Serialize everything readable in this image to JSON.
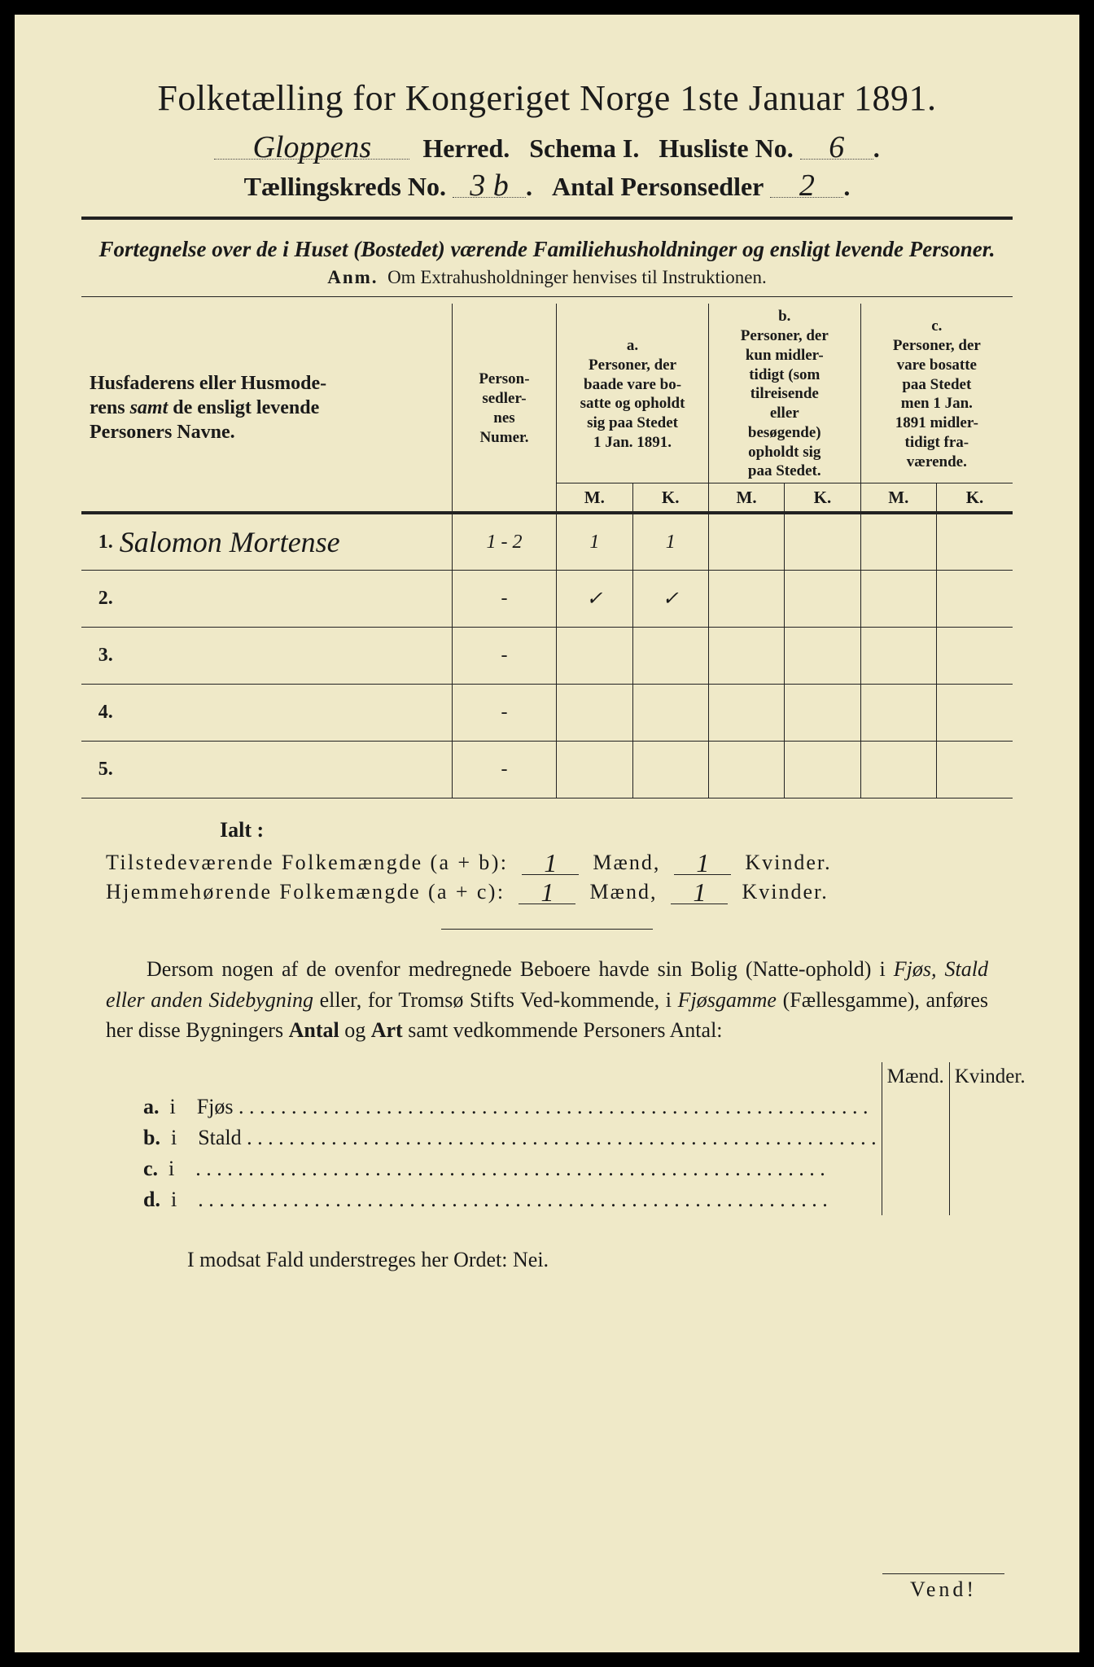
{
  "title": "Folketælling for Kongeriget Norge 1ste Januar 1891.",
  "header": {
    "herred_hw": "Gloppens",
    "herred_label": "Herred.",
    "schema_label": "Schema I.",
    "husliste_label": "Husliste No.",
    "husliste_hw": "6",
    "kreds_label": "Tællingskreds No.",
    "kreds_hw": "3 b",
    "antal_label": "Antal Personsedler",
    "antal_hw": "2"
  },
  "subtitle": "Fortegnelse over de i Huset (Bostedet) værende Familiehusholdninger og ensligt levende Personer.",
  "anm_label": "Anm.",
  "anm_text": "Om Extrahusholdninger henvises til Instruktionen.",
  "columns": {
    "name": "Husfaderens eller Husmoderens samt de ensligt levende Personers Navne.",
    "numer": "Person-sedler-nes Numer.",
    "a_label": "a.",
    "a_text": "Personer, der baade vare bosatte og opholdt sig paa Stedet 1 Jan. 1891.",
    "b_label": "b.",
    "b_text": "Personer, der kun midlertidigt (som tilreisende eller besøgende) opholdt sig paa Stedet.",
    "c_label": "c.",
    "c_text": "Personer, der vare bosatte paa Stedet men 1 Jan. 1891 midlertidigt fraværende.",
    "M": "M.",
    "K": "K."
  },
  "rows": [
    {
      "n": "1.",
      "name": "Salomon Mortense",
      "numer": "1 - 2",
      "aM": "1",
      "aK": "1",
      "bM": "",
      "bK": "",
      "cM": "",
      "cK": ""
    },
    {
      "n": "2.",
      "name": "",
      "numer": "-",
      "aM": "✓",
      "aK": "✓",
      "bM": "",
      "bK": "",
      "cM": "",
      "cK": ""
    },
    {
      "n": "3.",
      "name": "",
      "numer": "-",
      "aM": "",
      "aK": "",
      "bM": "",
      "bK": "",
      "cM": "",
      "cK": ""
    },
    {
      "n": "4.",
      "name": "",
      "numer": "-",
      "aM": "",
      "aK": "",
      "bM": "",
      "bK": "",
      "cM": "",
      "cK": ""
    },
    {
      "n": "5.",
      "name": "",
      "numer": "-",
      "aM": "",
      "aK": "",
      "bM": "",
      "bK": "",
      "cM": "",
      "cK": ""
    }
  ],
  "ialt": "Ialt :",
  "totals": {
    "line1_label": "Tilstedeværende Folkemængde (a + b):",
    "line2_label": "Hjemmehørende Folkemængde (a + c):",
    "maend": "Mænd,",
    "kvinder": "Kvinder.",
    "m1": "1",
    "k1": "1",
    "m2": "1",
    "k2": "1"
  },
  "para": "Dersom nogen af de ovenfor medregnede Beboere havde sin Bolig (Natteophold) i Fjøs, Stald eller anden Sidebygning eller, for Tromsø Stifts Vedkommende, i Fjøsgamme (Fællesgamme), anføres her disse Bygningers Antal og Art samt vedkommende Personers Antal:",
  "lower": {
    "maend": "Mænd.",
    "kvinder": "Kvinder.",
    "rows": [
      {
        "k": "a.",
        "i": "i",
        "label": "Fjøs"
      },
      {
        "k": "b.",
        "i": "i",
        "label": "Stald"
      },
      {
        "k": "c.",
        "i": "i",
        "label": ""
      },
      {
        "k": "d.",
        "i": "i",
        "label": ""
      }
    ]
  },
  "nei": "I modsat Fald understreges her Ordet: Nei.",
  "vend": "Vend!"
}
